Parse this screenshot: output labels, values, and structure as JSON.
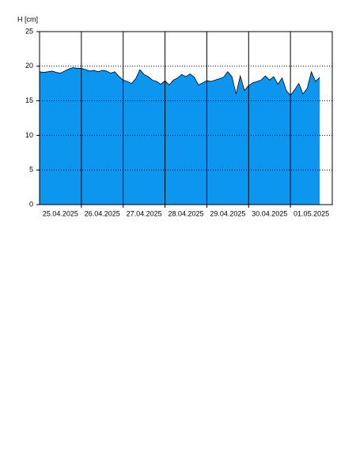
{
  "chart_data": {
    "type": "area",
    "y_label": "H [cm]",
    "color": "#0d96f0",
    "line_color": "#000000",
    "x": [
      0,
      0.1,
      0.2,
      0.3,
      0.4,
      0.5,
      0.6,
      0.7,
      0.8,
      0.9,
      1,
      1.1,
      1.2,
      1.3,
      1.4,
      1.5,
      1.6,
      1.7,
      1.8,
      1.9,
      2,
      2.1,
      2.2,
      2.3,
      2.4,
      2.5,
      2.6,
      2.7,
      2.8,
      2.9,
      3,
      3.1,
      3.2,
      3.3,
      3.4,
      3.5,
      3.6,
      3.7,
      3.8,
      3.9,
      4,
      4.1,
      4.2,
      4.3,
      4.4,
      4.5,
      4.6,
      4.7,
      4.8,
      4.9,
      5,
      5.1,
      5.2,
      5.3,
      5.4,
      5.5,
      5.6,
      5.7,
      5.8,
      5.9,
      6,
      6.1,
      6.2,
      6.3,
      6.4,
      6.5,
      6.6,
      6.7
    ],
    "values": [
      19.2,
      19.1,
      19.2,
      19.3,
      19.1,
      19.0,
      19.3,
      19.6,
      19.8,
      19.7,
      19.7,
      19.5,
      19.3,
      19.4,
      19.2,
      19.4,
      19.3,
      19.0,
      19.2,
      18.5,
      18.0,
      17.8,
      17.5,
      18.2,
      19.5,
      18.8,
      18.5,
      18.0,
      17.8,
      17.4,
      17.9,
      17.3,
      18.0,
      18.3,
      18.8,
      18.5,
      18.9,
      18.4,
      17.3,
      17.6,
      17.9,
      17.8,
      18.0,
      18.2,
      18.4,
      19.2,
      18.5,
      16.0,
      18.6,
      16.5,
      17.2,
      17.6,
      17.8,
      18.0,
      18.6,
      18.0,
      18.5,
      17.4,
      18.3,
      16.5,
      15.8,
      16.6,
      17.5,
      16.0,
      16.8,
      19.2,
      17.8,
      18.4
    ],
    "xlim": [
      0,
      7
    ],
    "xticks": [
      {
        "value": 0.5,
        "label": "25.04.2025"
      },
      {
        "value": 1.5,
        "label": "26.04.2025"
      },
      {
        "value": 2.5,
        "label": "27.04.2025"
      },
      {
        "value": 3.5,
        "label": "28.04.2025"
      },
      {
        "value": 4.5,
        "label": "29.04.2025"
      },
      {
        "value": 5.5,
        "label": "30.04.2025"
      },
      {
        "value": 6.5,
        "label": "01.05.2025"
      }
    ],
    "xgrid": [
      1,
      2,
      3,
      4,
      5,
      6
    ],
    "ylim": [
      0,
      25
    ],
    "yticks": [
      0,
      5,
      10,
      15,
      20,
      25
    ],
    "grid": true
  }
}
